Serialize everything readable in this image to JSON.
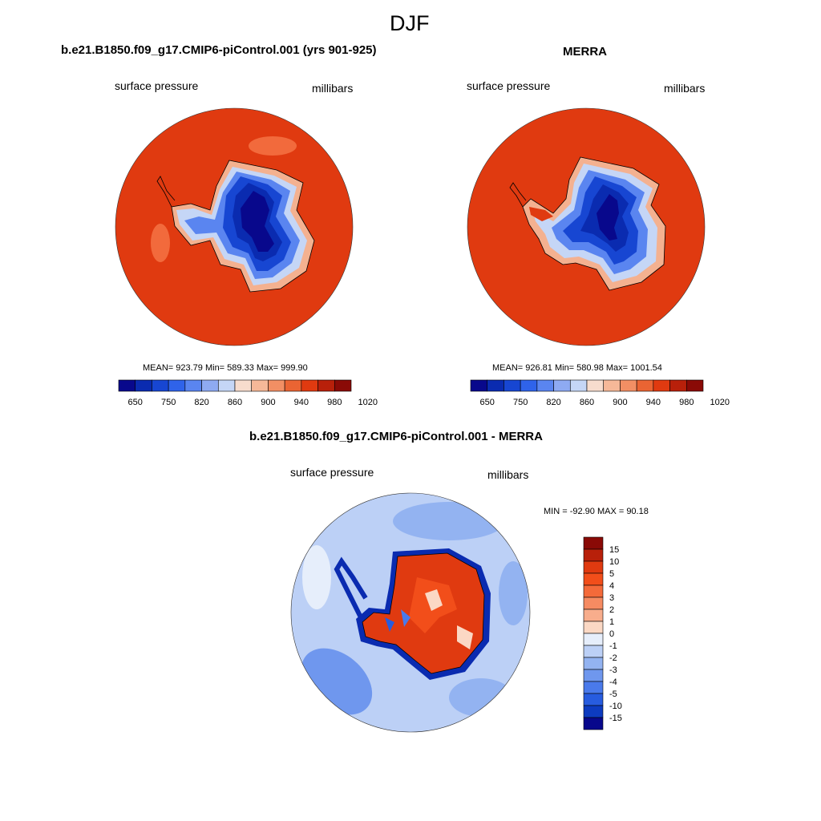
{
  "title": "DJF",
  "panels": {
    "model": {
      "title": "b.e21.B1850.f09_g17.CMIP6-piControl.001 (yrs 901-925)",
      "left_label": "surface pressure",
      "right_label": "millibars",
      "stats": "MEAN= 923.79  Min= 589.33  Max= 999.90"
    },
    "obs": {
      "title": "MERRA",
      "left_label": "surface pressure",
      "right_label": "millibars",
      "stats": "MEAN= 926.81  Min= 580.98  Max= 1001.54"
    },
    "diff": {
      "title": "b.e21.B1850.f09_g17.CMIP6-piControl.001 - MERRA",
      "left_label": "surface pressure",
      "right_label": "millibars",
      "stats": "MIN = -92.90 MAX =  90.18"
    }
  },
  "colorbar_main": {
    "labels": [
      "650",
      "750",
      "820",
      "860",
      "900",
      "940",
      "980",
      "1020"
    ],
    "colors": [
      "#08088c",
      "#0a2bb0",
      "#1746d2",
      "#2f63ea",
      "#5a85f0",
      "#8eaaf2",
      "#c5d6f6",
      "#f7dccd",
      "#f6b898",
      "#f28f64",
      "#ea6433",
      "#e03a10",
      "#b8200a",
      "#8a0a06"
    ]
  },
  "colorbar_diff": {
    "labels": [
      "15",
      "10",
      "5",
      "4",
      "3",
      "2",
      "1",
      "0",
      "-1",
      "-2",
      "-3",
      "-4",
      "-5",
      "-10",
      "-15"
    ],
    "colors": [
      "#8a0a06",
      "#b8200a",
      "#e03a10",
      "#f24e1a",
      "#f46a3a",
      "#f68b62",
      "#f8ad8c",
      "#fbd8c4",
      "#e6eefb",
      "#bcd0f6",
      "#93b3f1",
      "#6f97ee",
      "#4a7aeb",
      "#275cdf",
      "#0d3bc0",
      "#08088c"
    ]
  },
  "map_colors": {
    "ocean_high": "#e03a10",
    "ocean_diff": "#bcd0f6"
  }
}
